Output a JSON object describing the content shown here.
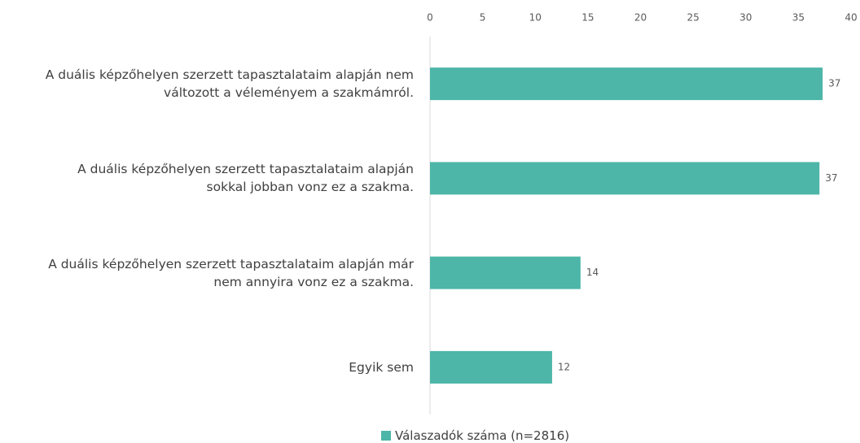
{
  "chart_data": {
    "type": "bar",
    "orientation": "horizontal",
    "categories": [
      "A duális képzőhelyen szerzett tapasztalataim alapján nem\nváltozott a véleményem a szakmámról.",
      "A duális képzőhelyen szerzett tapasztalataim alapján\nsokkal jobban vonz ez a szakma.",
      "A duális képzőhelyen szerzett tapasztalataim alapján már\nnem annyira vonz ez a szakma.",
      "Egyik sem"
    ],
    "series": [
      {
        "name": "Válaszadók száma (n=2816)",
        "color": "#4db6a8",
        "values": [
          37.3,
          37.0,
          14.3,
          11.6
        ],
        "value_labels": [
          "37",
          "37",
          "14",
          "12"
        ]
      }
    ],
    "xlim": [
      0,
      40
    ],
    "xticks": [
      0,
      5,
      10,
      15,
      20,
      25,
      30,
      35,
      40
    ],
    "legend": "bottom"
  }
}
